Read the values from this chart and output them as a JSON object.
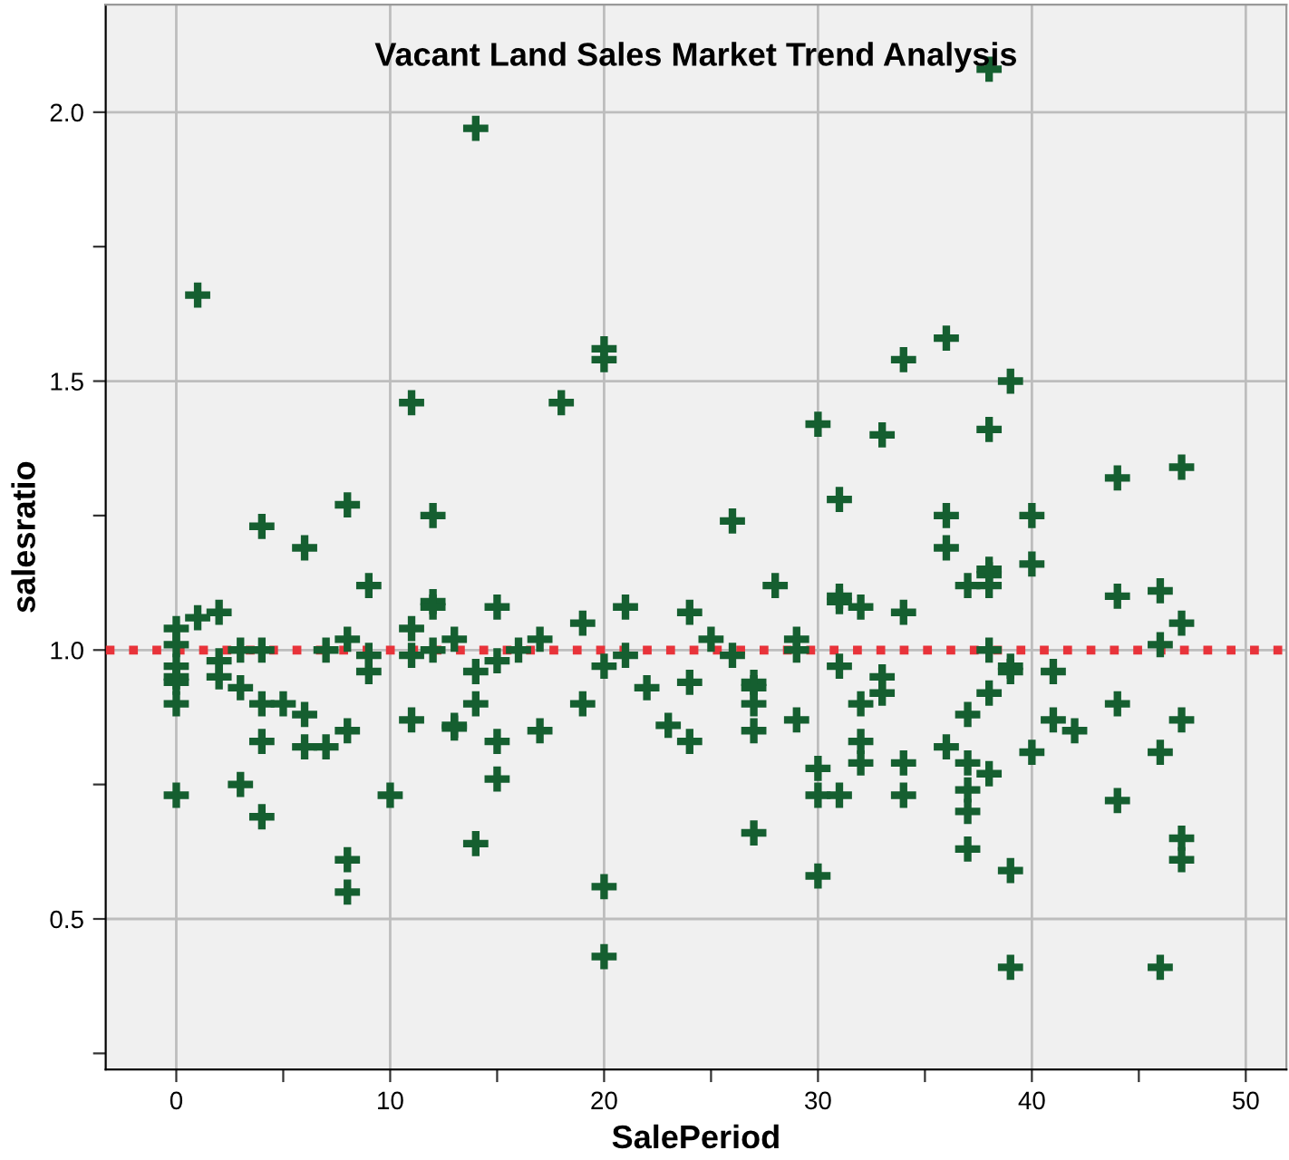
{
  "chart_data": {
    "type": "scatter",
    "title": "Vacant Land Sales Market Trend Analysis",
    "xlabel": "SalePeriod",
    "ylabel": "salesratio",
    "series": [
      {
        "color": "#155f30",
        "x": [
          0,
          0,
          0,
          0,
          0,
          0,
          0,
          1,
          1,
          2,
          2,
          2,
          3,
          3,
          3,
          4,
          4,
          4,
          4,
          4,
          5,
          6,
          6,
          6,
          7,
          7,
          8,
          8,
          8,
          8,
          8,
          9,
          9,
          9,
          10,
          11,
          11,
          11,
          11,
          12,
          12,
          12,
          12,
          13,
          13,
          13,
          14,
          14,
          14,
          14,
          15,
          15,
          15,
          15,
          16,
          17,
          17,
          18,
          19,
          19,
          20,
          20,
          20,
          20,
          20,
          21,
          21,
          22,
          23,
          24,
          24,
          24,
          25,
          26,
          26,
          27,
          27,
          27,
          27,
          27,
          28,
          29,
          29,
          29,
          30,
          30,
          30,
          30,
          31,
          31,
          31,
          31,
          31,
          32,
          32,
          32,
          32,
          33,
          33,
          33,
          34,
          34,
          34,
          34,
          36,
          36,
          36,
          36,
          37,
          37,
          37,
          37,
          37,
          37,
          38,
          38,
          38,
          38,
          38,
          38,
          38,
          38,
          39,
          39,
          39,
          39,
          39,
          40,
          40,
          40,
          41,
          41,
          42,
          44,
          44,
          44,
          44,
          46,
          46,
          46,
          46,
          47,
          47,
          47,
          47,
          47
        ],
        "values": [
          1.04,
          1.01,
          0.97,
          0.95,
          0.94,
          0.9,
          0.73,
          1.66,
          1.06,
          1.07,
          0.98,
          0.95,
          1.0,
          0.93,
          0.75,
          1.23,
          1.0,
          0.9,
          0.83,
          0.69,
          0.9,
          1.19,
          0.88,
          0.82,
          1.0,
          0.82,
          1.27,
          1.02,
          0.85,
          0.61,
          0.55,
          1.12,
          0.99,
          0.96,
          0.73,
          1.46,
          1.04,
          0.99,
          0.87,
          1.25,
          1.09,
          1.08,
          1.0,
          1.02,
          0.86,
          0.855,
          1.97,
          0.96,
          0.9,
          0.64,
          1.08,
          0.98,
          0.83,
          0.76,
          1.0,
          1.02,
          0.85,
          1.46,
          1.05,
          0.9,
          1.56,
          1.54,
          0.97,
          0.56,
          0.43,
          1.08,
          0.99,
          0.93,
          0.86,
          1.07,
          0.94,
          0.83,
          1.02,
          1.24,
          0.99,
          0.94,
          0.93,
          0.9,
          0.85,
          0.66,
          1.12,
          1.02,
          1.0,
          0.87,
          1.42,
          0.78,
          0.73,
          0.58,
          1.28,
          1.1,
          1.09,
          0.97,
          0.73,
          1.08,
          0.9,
          0.83,
          0.79,
          1.4,
          0.95,
          0.92,
          1.54,
          1.07,
          0.79,
          0.73,
          1.58,
          1.25,
          1.19,
          0.82,
          1.12,
          0.88,
          0.79,
          0.74,
          0.7,
          0.63,
          2.08,
          1.41,
          1.14,
          1.12,
          1.0,
          0.92,
          0.77,
          1.15,
          1.5,
          0.97,
          0.96,
          0.59,
          0.41,
          1.25,
          1.16,
          0.81,
          0.96,
          0.87,
          0.85,
          1.32,
          1.1,
          0.9,
          0.72,
          1.11,
          1.01,
          0.81,
          0.41,
          1.34,
          1.05,
          0.87,
          0.65,
          0.61
        ]
      }
    ],
    "marker": "cross",
    "grid": true,
    "xlim": [
      -3.3,
      51.9
    ],
    "ylim": [
      0.22,
      2.2
    ],
    "xticks": [
      0,
      {
        "value": 5,
        "label": null
      },
      10,
      {
        "value": 15,
        "label": null
      },
      20,
      {
        "value": 25,
        "label": null
      },
      30,
      {
        "value": 35,
        "label": null
      },
      40,
      {
        "value": 45,
        "label": null
      },
      50
    ],
    "yticks": [
      {
        "value": 0.25,
        "label": null
      },
      {
        "value": 0.5,
        "label": "0.5"
      },
      {
        "value": 0.75,
        "label": null
      },
      {
        "value": 1.0,
        "label": "1.0"
      },
      {
        "value": 1.25,
        "label": null
      },
      {
        "value": 1.5,
        "label": "1.5"
      },
      {
        "value": 1.75,
        "label": null
      },
      {
        "value": 2.0,
        "label": "2.0"
      }
    ],
    "ref_lines": [
      {
        "axis": "y",
        "value": 1.0,
        "color": "#e8333a",
        "line_style": "dotted"
      }
    ]
  }
}
